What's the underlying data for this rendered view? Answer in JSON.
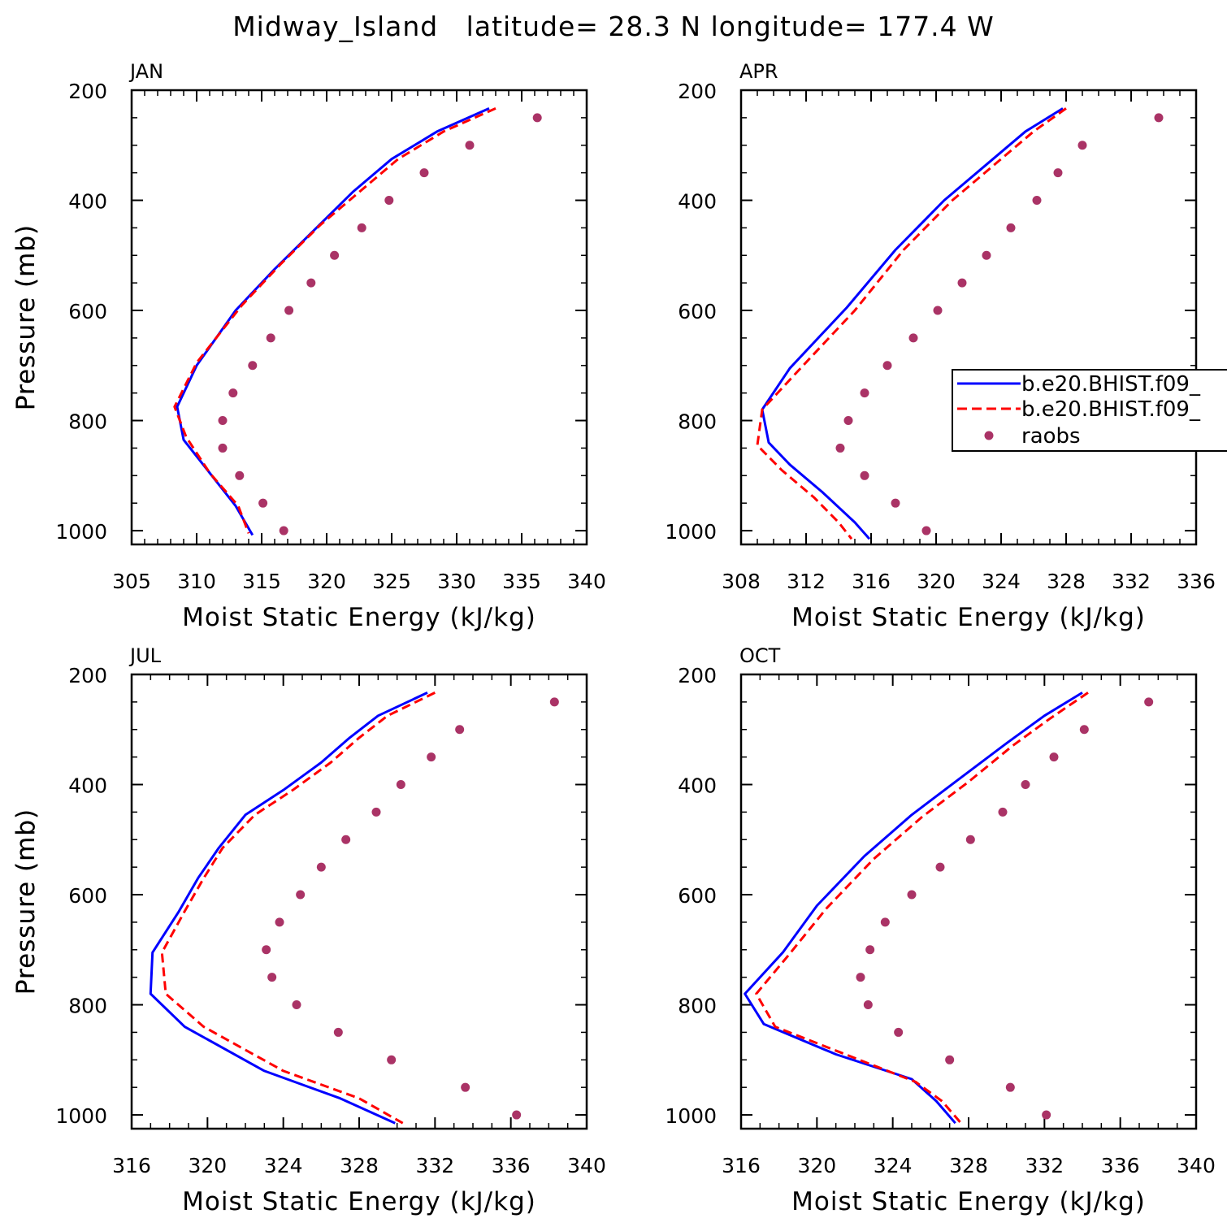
{
  "figure": {
    "title": "Midway_Island   latitude= 28.3 N longitude= 177.4 W"
  },
  "legend": {
    "entries": [
      {
        "label": "b.e20.BHIST.f09_",
        "style": "solid",
        "color": "#0000ff"
      },
      {
        "label": "b.e20.BHIST.f09_",
        "style": "dashed",
        "color": "#ff0000"
      },
      {
        "label": "raobs",
        "style": "dot",
        "color": "#aa3366"
      }
    ]
  },
  "chart_data": [
    {
      "type": "line",
      "panel": "JAN",
      "xlabel": "Moist Static Energy (kJ/kg)",
      "ylabel": "Pressure (mb)",
      "xlim": [
        305,
        340
      ],
      "ylim": [
        1025,
        200
      ],
      "xticks": [
        305,
        310,
        315,
        320,
        325,
        330,
        335,
        340
      ],
      "xminor": 1,
      "yticks": [
        200,
        400,
        600,
        800,
        1000
      ],
      "yminor": 50,
      "series": [
        {
          "name": "b.e20.BHIST.f09_",
          "style": "solid",
          "color": "#0000ff",
          "points": [
            [
              332.5,
              233
            ],
            [
              328.5,
              275
            ],
            [
              325.0,
              325
            ],
            [
              322.0,
              385
            ],
            [
              319.0,
              455
            ],
            [
              316.0,
              525
            ],
            [
              313.0,
              600
            ],
            [
              310.0,
              700
            ],
            [
              308.5,
              775
            ],
            [
              309.0,
              835
            ],
            [
              311.0,
              895
            ],
            [
              313.0,
              955
            ],
            [
              314.3,
              1008
            ]
          ]
        },
        {
          "name": "b.e20.BHIST.f09_",
          "style": "dashed",
          "color": "#ff0000",
          "points": [
            [
              333.0,
              233
            ],
            [
              329.0,
              275
            ],
            [
              325.5,
              325
            ],
            [
              322.5,
              385
            ],
            [
              319.5,
              445
            ],
            [
              316.5,
              515
            ],
            [
              313.5,
              590
            ],
            [
              310.0,
              695
            ],
            [
              308.3,
              775
            ],
            [
              309.2,
              830
            ],
            [
              311.0,
              895
            ],
            [
              313.2,
              955
            ],
            [
              314.0,
              1005
            ]
          ]
        },
        {
          "name": "raobs",
          "style": "dot",
          "color": "#aa3366",
          "points": [
            [
              336.2,
              250
            ],
            [
              331.0,
              300
            ],
            [
              327.5,
              350
            ],
            [
              324.8,
              400
            ],
            [
              322.7,
              450
            ],
            [
              320.6,
              500
            ],
            [
              318.8,
              550
            ],
            [
              317.1,
              600
            ],
            [
              315.7,
              650
            ],
            [
              314.3,
              700
            ],
            [
              312.8,
              750
            ],
            [
              312.0,
              800
            ],
            [
              312.0,
              850
            ],
            [
              313.3,
              900
            ],
            [
              315.1,
              950
            ],
            [
              316.7,
              1000
            ]
          ]
        }
      ]
    },
    {
      "type": "line",
      "panel": "APR",
      "xlabel": "Moist Static Energy (kJ/kg)",
      "ylabel": "Pressure (mb)",
      "xlim": [
        308,
        336
      ],
      "ylim": [
        1025,
        200
      ],
      "xticks": [
        308,
        312,
        316,
        320,
        324,
        328,
        332,
        336
      ],
      "xminor": 1,
      "yticks": [
        200,
        400,
        600,
        800,
        1000
      ],
      "yminor": 50,
      "series": [
        {
          "name": "b.e20.BHIST.f09_",
          "style": "solid",
          "color": "#0000ff",
          "points": [
            [
              327.8,
              233
            ],
            [
              325.5,
              275
            ],
            [
              323.5,
              325
            ],
            [
              320.5,
              400
            ],
            [
              317.5,
              490
            ],
            [
              314.5,
              595
            ],
            [
              311.0,
              705
            ],
            [
              309.3,
              780
            ],
            [
              309.7,
              840
            ],
            [
              311.0,
              880
            ],
            [
              313.0,
              930
            ],
            [
              315.0,
              985
            ],
            [
              315.9,
              1015
            ]
          ]
        },
        {
          "name": "b.e20.BHIST.f09_",
          "style": "dashed",
          "color": "#ff0000",
          "points": [
            [
              328.0,
              233
            ],
            [
              326.0,
              275
            ],
            [
              324.0,
              325
            ],
            [
              321.0,
              400
            ],
            [
              318.0,
              490
            ],
            [
              315.0,
              600
            ],
            [
              311.5,
              710
            ],
            [
              309.3,
              780
            ],
            [
              309.0,
              845
            ],
            [
              310.5,
              890
            ],
            [
              312.5,
              940
            ],
            [
              314.0,
              985
            ],
            [
              314.8,
              1015
            ]
          ]
        },
        {
          "name": "raobs",
          "style": "dot",
          "color": "#aa3366",
          "points": [
            [
              333.7,
              250
            ],
            [
              329.0,
              300
            ],
            [
              327.5,
              350
            ],
            [
              326.2,
              400
            ],
            [
              324.6,
              450
            ],
            [
              323.1,
              500
            ],
            [
              321.6,
              550
            ],
            [
              320.1,
              600
            ],
            [
              318.6,
              650
            ],
            [
              317.0,
              700
            ],
            [
              315.6,
              750
            ],
            [
              314.6,
              800
            ],
            [
              314.1,
              850
            ],
            [
              315.6,
              900
            ],
            [
              317.5,
              950
            ],
            [
              319.4,
              1000
            ]
          ]
        }
      ]
    },
    {
      "type": "line",
      "panel": "JUL",
      "xlabel": "Moist Static Energy (kJ/kg)",
      "ylabel": "Pressure (mb)",
      "xlim": [
        316,
        340
      ],
      "ylim": [
        1025,
        200
      ],
      "xticks": [
        316,
        320,
        324,
        328,
        332,
        336,
        340
      ],
      "xminor": 1,
      "yticks": [
        200,
        400,
        600,
        800,
        1000
      ],
      "yminor": 50,
      "series": [
        {
          "name": "b.e20.BHIST.f09_",
          "style": "solid",
          "color": "#0000ff",
          "points": [
            [
              331.6,
              233
            ],
            [
              329.0,
              275
            ],
            [
              327.5,
              315
            ],
            [
              326.0,
              360
            ],
            [
              324.0,
              410
            ],
            [
              322.0,
              455
            ],
            [
              320.6,
              515
            ],
            [
              319.5,
              570
            ],
            [
              318.5,
              630
            ],
            [
              317.1,
              705
            ],
            [
              317.0,
              780
            ],
            [
              318.8,
              840
            ],
            [
              323.0,
              920
            ],
            [
              327.0,
              970
            ],
            [
              329.9,
              1015
            ]
          ]
        },
        {
          "name": "b.e20.BHIST.f09_",
          "style": "dashed",
          "color": "#ff0000",
          "points": [
            [
              332.0,
              233
            ],
            [
              329.5,
              275
            ],
            [
              328.0,
              315
            ],
            [
              326.5,
              360
            ],
            [
              324.5,
              410
            ],
            [
              322.5,
              455
            ],
            [
              320.8,
              515
            ],
            [
              319.8,
              570
            ],
            [
              318.8,
              630
            ],
            [
              317.6,
              705
            ],
            [
              317.8,
              780
            ],
            [
              319.8,
              840
            ],
            [
              324.0,
              920
            ],
            [
              328.0,
              970
            ],
            [
              330.3,
              1015
            ]
          ]
        },
        {
          "name": "raobs",
          "style": "dot",
          "color": "#aa3366",
          "points": [
            [
              338.3,
              250
            ],
            [
              333.3,
              300
            ],
            [
              331.8,
              350
            ],
            [
              330.2,
              400
            ],
            [
              328.9,
              450
            ],
            [
              327.3,
              500
            ],
            [
              326.0,
              550
            ],
            [
              324.9,
              600
            ],
            [
              323.8,
              650
            ],
            [
              323.1,
              700
            ],
            [
              323.4,
              750
            ],
            [
              324.7,
              800
            ],
            [
              326.9,
              850
            ],
            [
              329.7,
              900
            ],
            [
              333.6,
              950
            ],
            [
              336.3,
              1000
            ]
          ]
        }
      ]
    },
    {
      "type": "line",
      "panel": "OCT",
      "xlabel": "Moist Static Energy (kJ/kg)",
      "ylabel": "Pressure (mb)",
      "xlim": [
        316,
        340
      ],
      "ylim": [
        1025,
        200
      ],
      "xticks": [
        316,
        320,
        324,
        328,
        332,
        336,
        340
      ],
      "xminor": 1,
      "yticks": [
        200,
        400,
        600,
        800,
        1000
      ],
      "yminor": 50,
      "series": [
        {
          "name": "b.e20.BHIST.f09_",
          "style": "solid",
          "color": "#0000ff",
          "points": [
            [
              334.0,
              233
            ],
            [
              332.0,
              275
            ],
            [
              330.0,
              325
            ],
            [
              327.5,
              390
            ],
            [
              325.0,
              455
            ],
            [
              322.5,
              530
            ],
            [
              320.0,
              620
            ],
            [
              318.2,
              705
            ],
            [
              316.2,
              780
            ],
            [
              317.2,
              835
            ],
            [
              321.0,
              890
            ],
            [
              325.0,
              935
            ],
            [
              326.3,
              975
            ],
            [
              327.3,
              1015
            ]
          ]
        },
        {
          "name": "b.e20.BHIST.f09_",
          "style": "dashed",
          "color": "#ff0000",
          "points": [
            [
              334.3,
              233
            ],
            [
              332.3,
              280
            ],
            [
              330.3,
              330
            ],
            [
              328.0,
              395
            ],
            [
              325.5,
              460
            ],
            [
              323.0,
              535
            ],
            [
              320.5,
              625
            ],
            [
              318.5,
              710
            ],
            [
              316.8,
              780
            ],
            [
              317.8,
              840
            ],
            [
              321.5,
              890
            ],
            [
              325.2,
              940
            ],
            [
              326.6,
              975
            ],
            [
              327.6,
              1015
            ]
          ]
        },
        {
          "name": "raobs",
          "style": "dot",
          "color": "#aa3366",
          "points": [
            [
              337.5,
              250
            ],
            [
              334.1,
              300
            ],
            [
              332.5,
              350
            ],
            [
              331.0,
              400
            ],
            [
              329.8,
              450
            ],
            [
              328.1,
              500
            ],
            [
              326.5,
              550
            ],
            [
              325.0,
              600
            ],
            [
              323.6,
              650
            ],
            [
              322.8,
              700
            ],
            [
              322.3,
              750
            ],
            [
              322.7,
              800
            ],
            [
              324.3,
              850
            ],
            [
              327.0,
              900
            ],
            [
              330.2,
              950
            ],
            [
              332.1,
              1000
            ]
          ]
        }
      ]
    }
  ]
}
